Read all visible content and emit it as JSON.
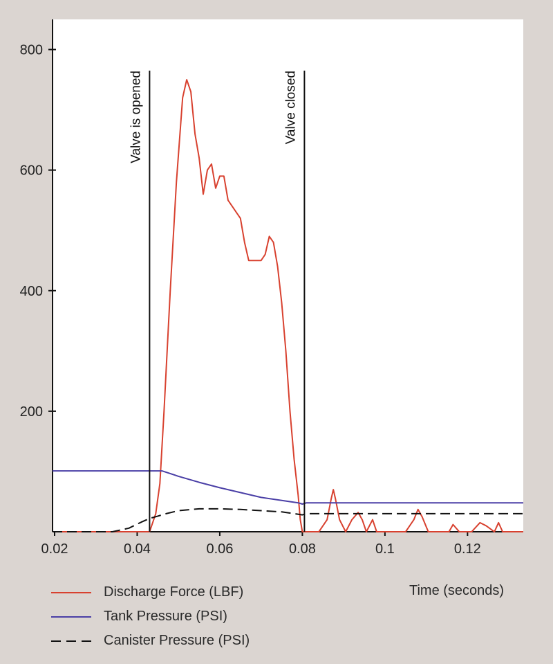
{
  "chart_data": {
    "type": "line",
    "title": "",
    "xlabel": "Time (seconds)",
    "ylabel": "",
    "xlim": [
      0.0195,
      0.1335
    ],
    "ylim": [
      0,
      850
    ],
    "x_ticks": [
      0.02,
      0.04,
      0.06,
      0.08,
      0.1,
      0.12
    ],
    "x_tick_labels": [
      "0.02",
      "0.04",
      "0.06",
      "0.08",
      "0.1",
      "0.12"
    ],
    "y_ticks": [
      200,
      400,
      600,
      800
    ],
    "y_tick_labels": [
      "200",
      "400",
      "600",
      "800"
    ],
    "legend_position": "bottom-left",
    "annotations": [
      {
        "label": "Valve is opened",
        "x": 0.043
      },
      {
        "label": "Valve closed",
        "x": 0.0805
      }
    ],
    "series": [
      {
        "name": "Discharge Force (LBF)",
        "color": "#d8412f",
        "style": "solid",
        "x": [
          0.0195,
          0.03,
          0.04,
          0.043,
          0.0445,
          0.0455,
          0.0465,
          0.048,
          0.0495,
          0.051,
          0.052,
          0.053,
          0.054,
          0.055,
          0.056,
          0.057,
          0.058,
          0.059,
          0.06,
          0.061,
          0.062,
          0.063,
          0.064,
          0.065,
          0.066,
          0.067,
          0.068,
          0.069,
          0.07,
          0.071,
          0.072,
          0.073,
          0.074,
          0.075,
          0.076,
          0.077,
          0.078,
          0.079,
          0.0795,
          0.08,
          0.0805,
          0.082,
          0.084,
          0.086,
          0.087,
          0.0875,
          0.088,
          0.089,
          0.0905,
          0.092,
          0.0935,
          0.0945,
          0.0955,
          0.097,
          0.098,
          0.0995,
          0.102,
          0.105,
          0.107,
          0.108,
          0.109,
          0.1105,
          0.113,
          0.1155,
          0.1165,
          0.118,
          0.121,
          0.123,
          0.1245,
          0.1265,
          0.1275,
          0.1285,
          0.1335
        ],
        "y": [
          0,
          0,
          0,
          0,
          30,
          80,
          200,
          400,
          580,
          720,
          750,
          730,
          660,
          620,
          560,
          600,
          610,
          570,
          590,
          590,
          550,
          540,
          530,
          520,
          480,
          450,
          450,
          450,
          450,
          460,
          490,
          480,
          440,
          380,
          300,
          200,
          120,
          60,
          20,
          0,
          0,
          0,
          0,
          20,
          55,
          70,
          55,
          20,
          0,
          20,
          32,
          20,
          0,
          20,
          0,
          0,
          0,
          0,
          20,
          37,
          25,
          0,
          0,
          0,
          12,
          0,
          0,
          15,
          10,
          0,
          15,
          0,
          0
        ]
      },
      {
        "name": "Tank Pressure (PSI)",
        "color": "#4a3fa6",
        "style": "solid",
        "x": [
          0.0195,
          0.046,
          0.05,
          0.055,
          0.06,
          0.065,
          0.07,
          0.075,
          0.079,
          0.08,
          0.081,
          0.1335
        ],
        "y": [
          101,
          101,
          92,
          82,
          73,
          65,
          57,
          52,
          48,
          46,
          48,
          48
        ]
      },
      {
        "name": "Canister Pressure (PSI)",
        "color": "#111111",
        "style": "dashed",
        "x": [
          0.0195,
          0.034,
          0.038,
          0.041,
          0.043,
          0.045,
          0.047,
          0.05,
          0.055,
          0.06,
          0.065,
          0.07,
          0.075,
          0.08,
          0.081,
          0.1335
        ],
        "y": [
          0,
          0,
          6,
          16,
          22,
          26,
          30,
          35,
          38,
          38,
          37,
          35,
          33,
          28,
          30,
          30
        ]
      }
    ]
  }
}
